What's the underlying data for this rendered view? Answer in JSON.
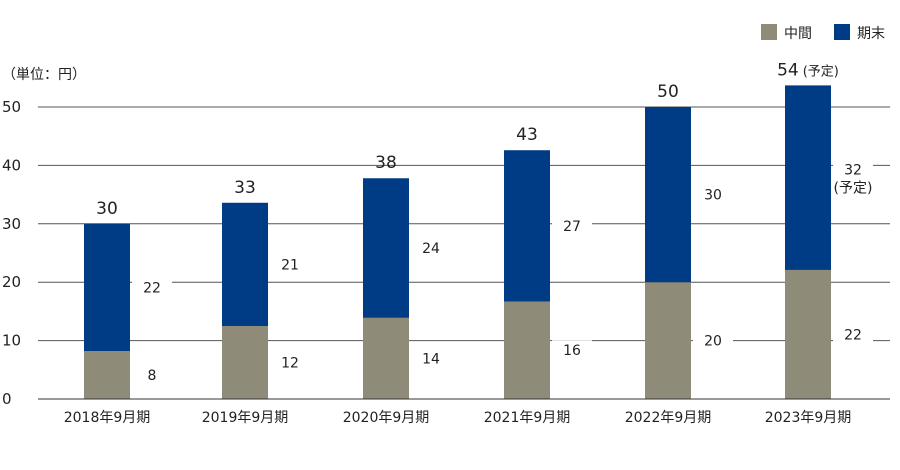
{
  "chart_data": {
    "type": "bar",
    "stacked": true,
    "unit_label": "（単位：円）",
    "categories": [
      "2018年9月期",
      "2019年9月期",
      "2020年9月期",
      "2021年9月期",
      "2022年9月期",
      "2023年9月期"
    ],
    "series": [
      {
        "name": "中間",
        "color": "#8e8c78",
        "values": [
          8,
          12,
          14,
          16,
          20,
          22
        ]
      },
      {
        "name": "期末",
        "color": "#003b85",
        "values": [
          22,
          21,
          24,
          27,
          30,
          32
        ]
      }
    ],
    "segment_bounds": [
      [
        8.2,
        12.5,
        13.9,
        16.7,
        20,
        22.1
      ],
      [
        30,
        33.6,
        37.8,
        42.6,
        50,
        53.7
      ]
    ],
    "totals": [
      30,
      33,
      38,
      43,
      50,
      54
    ],
    "total_suffixes": [
      "",
      "",
      "",
      "",
      "",
      "(予定)"
    ],
    "segment_suffixes": [
      [
        "",
        "",
        "",
        "",
        "",
        ""
      ],
      [
        "",
        "",
        "",
        "",
        "",
        "(予定)"
      ]
    ],
    "ylim": [
      0,
      50
    ],
    "yticks": [
      0,
      10,
      20,
      30,
      40,
      50
    ],
    "grid": true,
    "legend_position": "top-right"
  }
}
